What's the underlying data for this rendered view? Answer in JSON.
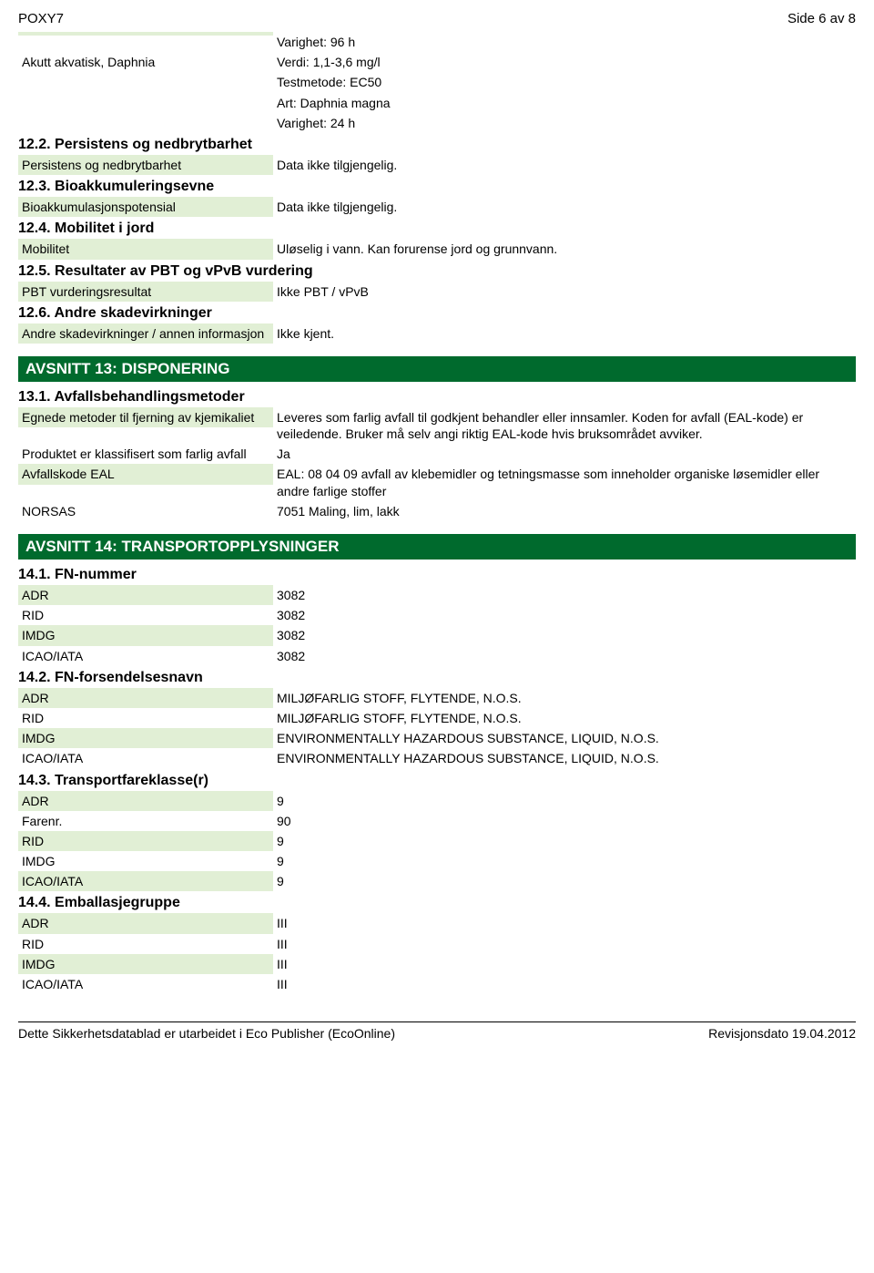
{
  "header": {
    "left": "POXY7",
    "right": "Side 6 av 8"
  },
  "top_rows": [
    {
      "label": "",
      "value": "Varighet: 96 h",
      "green": true
    },
    {
      "label": "Akutt akvatisk, Daphnia",
      "value": "Verdi: 1,1-3,6 mg/l",
      "green": false
    },
    {
      "label": "",
      "value": "Testmetode: EC50",
      "green": false
    },
    {
      "label": "",
      "value": "Art: Daphnia magna",
      "green": false
    },
    {
      "label": "",
      "value": "Varighet: 24 h",
      "green": false
    }
  ],
  "s12_2": {
    "title": "12.2. Persistens og nedbrytbarhet",
    "rows": [
      {
        "label": "Persistens og nedbrytbarhet",
        "value": "Data ikke tilgjengelig.",
        "green": true
      }
    ]
  },
  "s12_3": {
    "title": "12.3. Bioakkumuleringsevne",
    "rows": [
      {
        "label": "Bioakkumulasjonspotensial",
        "value": "Data ikke tilgjengelig.",
        "green": true
      }
    ]
  },
  "s12_4": {
    "title": "12.4. Mobilitet i jord",
    "rows": [
      {
        "label": "Mobilitet",
        "value": "Uløselig i vann. Kan forurense jord og grunnvann.",
        "green": true
      }
    ]
  },
  "s12_5": {
    "title": "12.5. Resultater av PBT og vPvB vurdering",
    "rows": [
      {
        "label": "PBT vurderingsresultat",
        "value": "Ikke PBT / vPvB",
        "green": true
      }
    ]
  },
  "s12_6": {
    "title": "12.6. Andre skadevirkninger",
    "rows": [
      {
        "label": "Andre skadevirkninger / annen informasjon",
        "value": "Ikke kjent.",
        "green": true
      }
    ]
  },
  "s13": {
    "section": "AVSNITT 13: DISPONERING",
    "sub": "13.1. Avfallsbehandlingsmetoder",
    "rows": [
      {
        "label": "Egnede metoder til fjerning av kjemikaliet",
        "value": "Leveres som farlig avfall til godkjent behandler eller innsamler. Koden for avfall (EAL-kode) er veiledende. Bruker må selv angi riktig EAL-kode hvis bruksområdet avviker.",
        "green": true
      },
      {
        "label": "Produktet er klassifisert som farlig avfall",
        "value": "Ja",
        "green": false
      },
      {
        "label": "Avfallskode EAL",
        "value": "EAL: 08 04 09 avfall av klebemidler og tetningsmasse som inneholder organiske løsemidler eller andre farlige stoffer",
        "green": true
      },
      {
        "label": "NORSAS",
        "value": "7051 Maling, lim, lakk",
        "green": false
      }
    ]
  },
  "s14": {
    "section": "AVSNITT 14: TRANSPORTOPPLYSNINGER",
    "s14_1": {
      "title": "14.1. FN-nummer",
      "rows": [
        {
          "label": "ADR",
          "value": "3082",
          "green": true
        },
        {
          "label": "RID",
          "value": "3082",
          "green": false
        },
        {
          "label": "IMDG",
          "value": "3082",
          "green": true
        },
        {
          "label": "ICAO/IATA",
          "value": "3082",
          "green": false
        }
      ]
    },
    "s14_2": {
      "title": "14.2. FN-forsendelsesnavn",
      "rows": [
        {
          "label": "ADR",
          "value": "MILJØFARLIG STOFF, FLYTENDE, N.O.S.",
          "green": true
        },
        {
          "label": "RID",
          "value": "MILJØFARLIG STOFF, FLYTENDE, N.O.S.",
          "green": false
        },
        {
          "label": "IMDG",
          "value": "ENVIRONMENTALLY HAZARDOUS SUBSTANCE, LIQUID, N.O.S.",
          "green": true
        },
        {
          "label": "ICAO/IATA",
          "value": "ENVIRONMENTALLY HAZARDOUS SUBSTANCE, LIQUID, N.O.S.",
          "green": false
        }
      ]
    },
    "s14_3": {
      "title": "14.3. Transportfareklasse(r)",
      "rows": [
        {
          "label": "ADR",
          "value": "9",
          "green": true
        },
        {
          "label": "Farenr.",
          "value": "90",
          "green": false
        },
        {
          "label": "RID",
          "value": "9",
          "green": true
        },
        {
          "label": "IMDG",
          "value": "9",
          "green": false
        },
        {
          "label": "ICAO/IATA",
          "value": "9",
          "green": true
        }
      ]
    },
    "s14_4": {
      "title": "14.4. Emballasjegruppe",
      "rows": [
        {
          "label": "ADR",
          "value": "III",
          "green": true
        },
        {
          "label": "RID",
          "value": "III",
          "green": false
        },
        {
          "label": "IMDG",
          "value": "III",
          "green": true
        },
        {
          "label": "ICAO/IATA",
          "value": "III",
          "green": false
        }
      ]
    }
  },
  "footer": {
    "left": "Dette Sikkerhetsdatablad er utarbeidet i Eco Publisher (EcoOnline)",
    "right": "Revisjonsdato 19.04.2012"
  },
  "colors": {
    "section_bg": "#006a2d",
    "section_fg": "#ffffff",
    "row_green": "#e1efd5"
  }
}
